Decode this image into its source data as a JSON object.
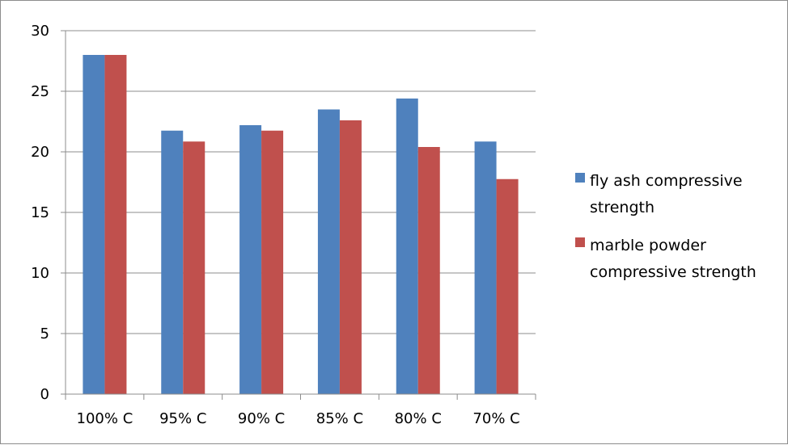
{
  "chart_data": {
    "type": "bar",
    "categories": [
      "100% C",
      "95% C",
      "90% C",
      "85% C",
      "80% C",
      "70% C"
    ],
    "series": [
      {
        "name": "fly ash compressive strength",
        "legend_lines": [
          "fly ash compressive",
          "strength"
        ],
        "color": "#4f81bd",
        "values": [
          28.0,
          21.75,
          22.2,
          23.5,
          24.4,
          20.85
        ]
      },
      {
        "name": "marble powder compressive strength",
        "legend_lines": [
          "marble powder",
          "compressive strength"
        ],
        "color": "#c0504d",
        "values": [
          28.0,
          20.85,
          21.75,
          22.6,
          20.4,
          17.75
        ]
      }
    ],
    "yticks": [
      "0",
      "5",
      "10",
      "15",
      "20",
      "25",
      "30"
    ],
    "ylim": [
      0,
      30
    ],
    "title": "",
    "xlabel": "",
    "ylabel": "",
    "grid": true,
    "legend_position": "right"
  }
}
